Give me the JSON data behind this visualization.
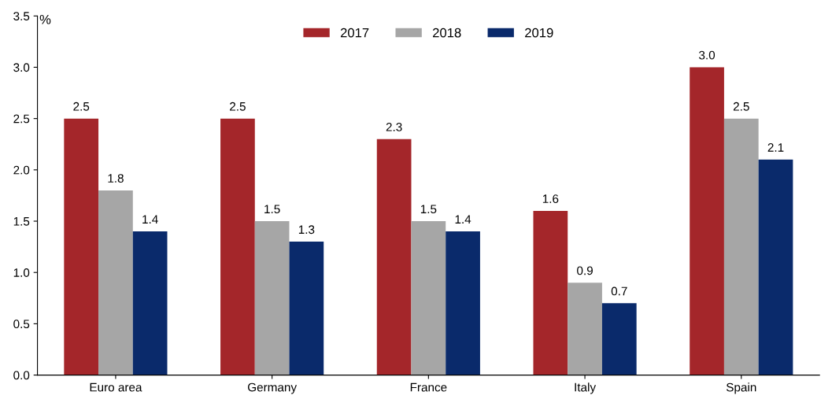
{
  "chart_data": {
    "type": "bar",
    "ylabel": "%",
    "categories": [
      "Euro area",
      "Germany",
      "France",
      "Italy",
      "Spain"
    ],
    "series": [
      {
        "name": "2017",
        "color": "#a4262a",
        "values": [
          2.5,
          2.5,
          2.3,
          1.6,
          3.0
        ],
        "value_labels": [
          "2.5",
          "2.5",
          "2.3",
          "1.6",
          "3.0"
        ]
      },
      {
        "name": "2018",
        "color": "#a6a6a6",
        "values": [
          1.8,
          1.5,
          1.5,
          0.9,
          2.5
        ],
        "value_labels": [
          "1.8",
          "1.5",
          "1.5",
          "0.9",
          "2.5"
        ]
      },
      {
        "name": "2019",
        "color": "#0a2a6b",
        "values": [
          1.4,
          1.3,
          1.4,
          0.7,
          2.1
        ],
        "value_labels": [
          "1.4",
          "1.3",
          "1.4",
          "0.7",
          "2.1"
        ]
      }
    ],
    "ylim": [
      0,
      3.5
    ],
    "yticks": [
      {
        "value": 0,
        "label": "0.0"
      },
      {
        "value": 0.5,
        "label": "0.5"
      },
      {
        "value": 1,
        "label": "1.0"
      },
      {
        "value": 1.5,
        "label": "1.5"
      },
      {
        "value": 2,
        "label": "2.0"
      },
      {
        "value": 2.5,
        "label": "2.5"
      },
      {
        "value": 3,
        "label": "3.0"
      },
      {
        "value": 3.5,
        "label": "3.5"
      }
    ],
    "grid": false,
    "legend": "top"
  }
}
